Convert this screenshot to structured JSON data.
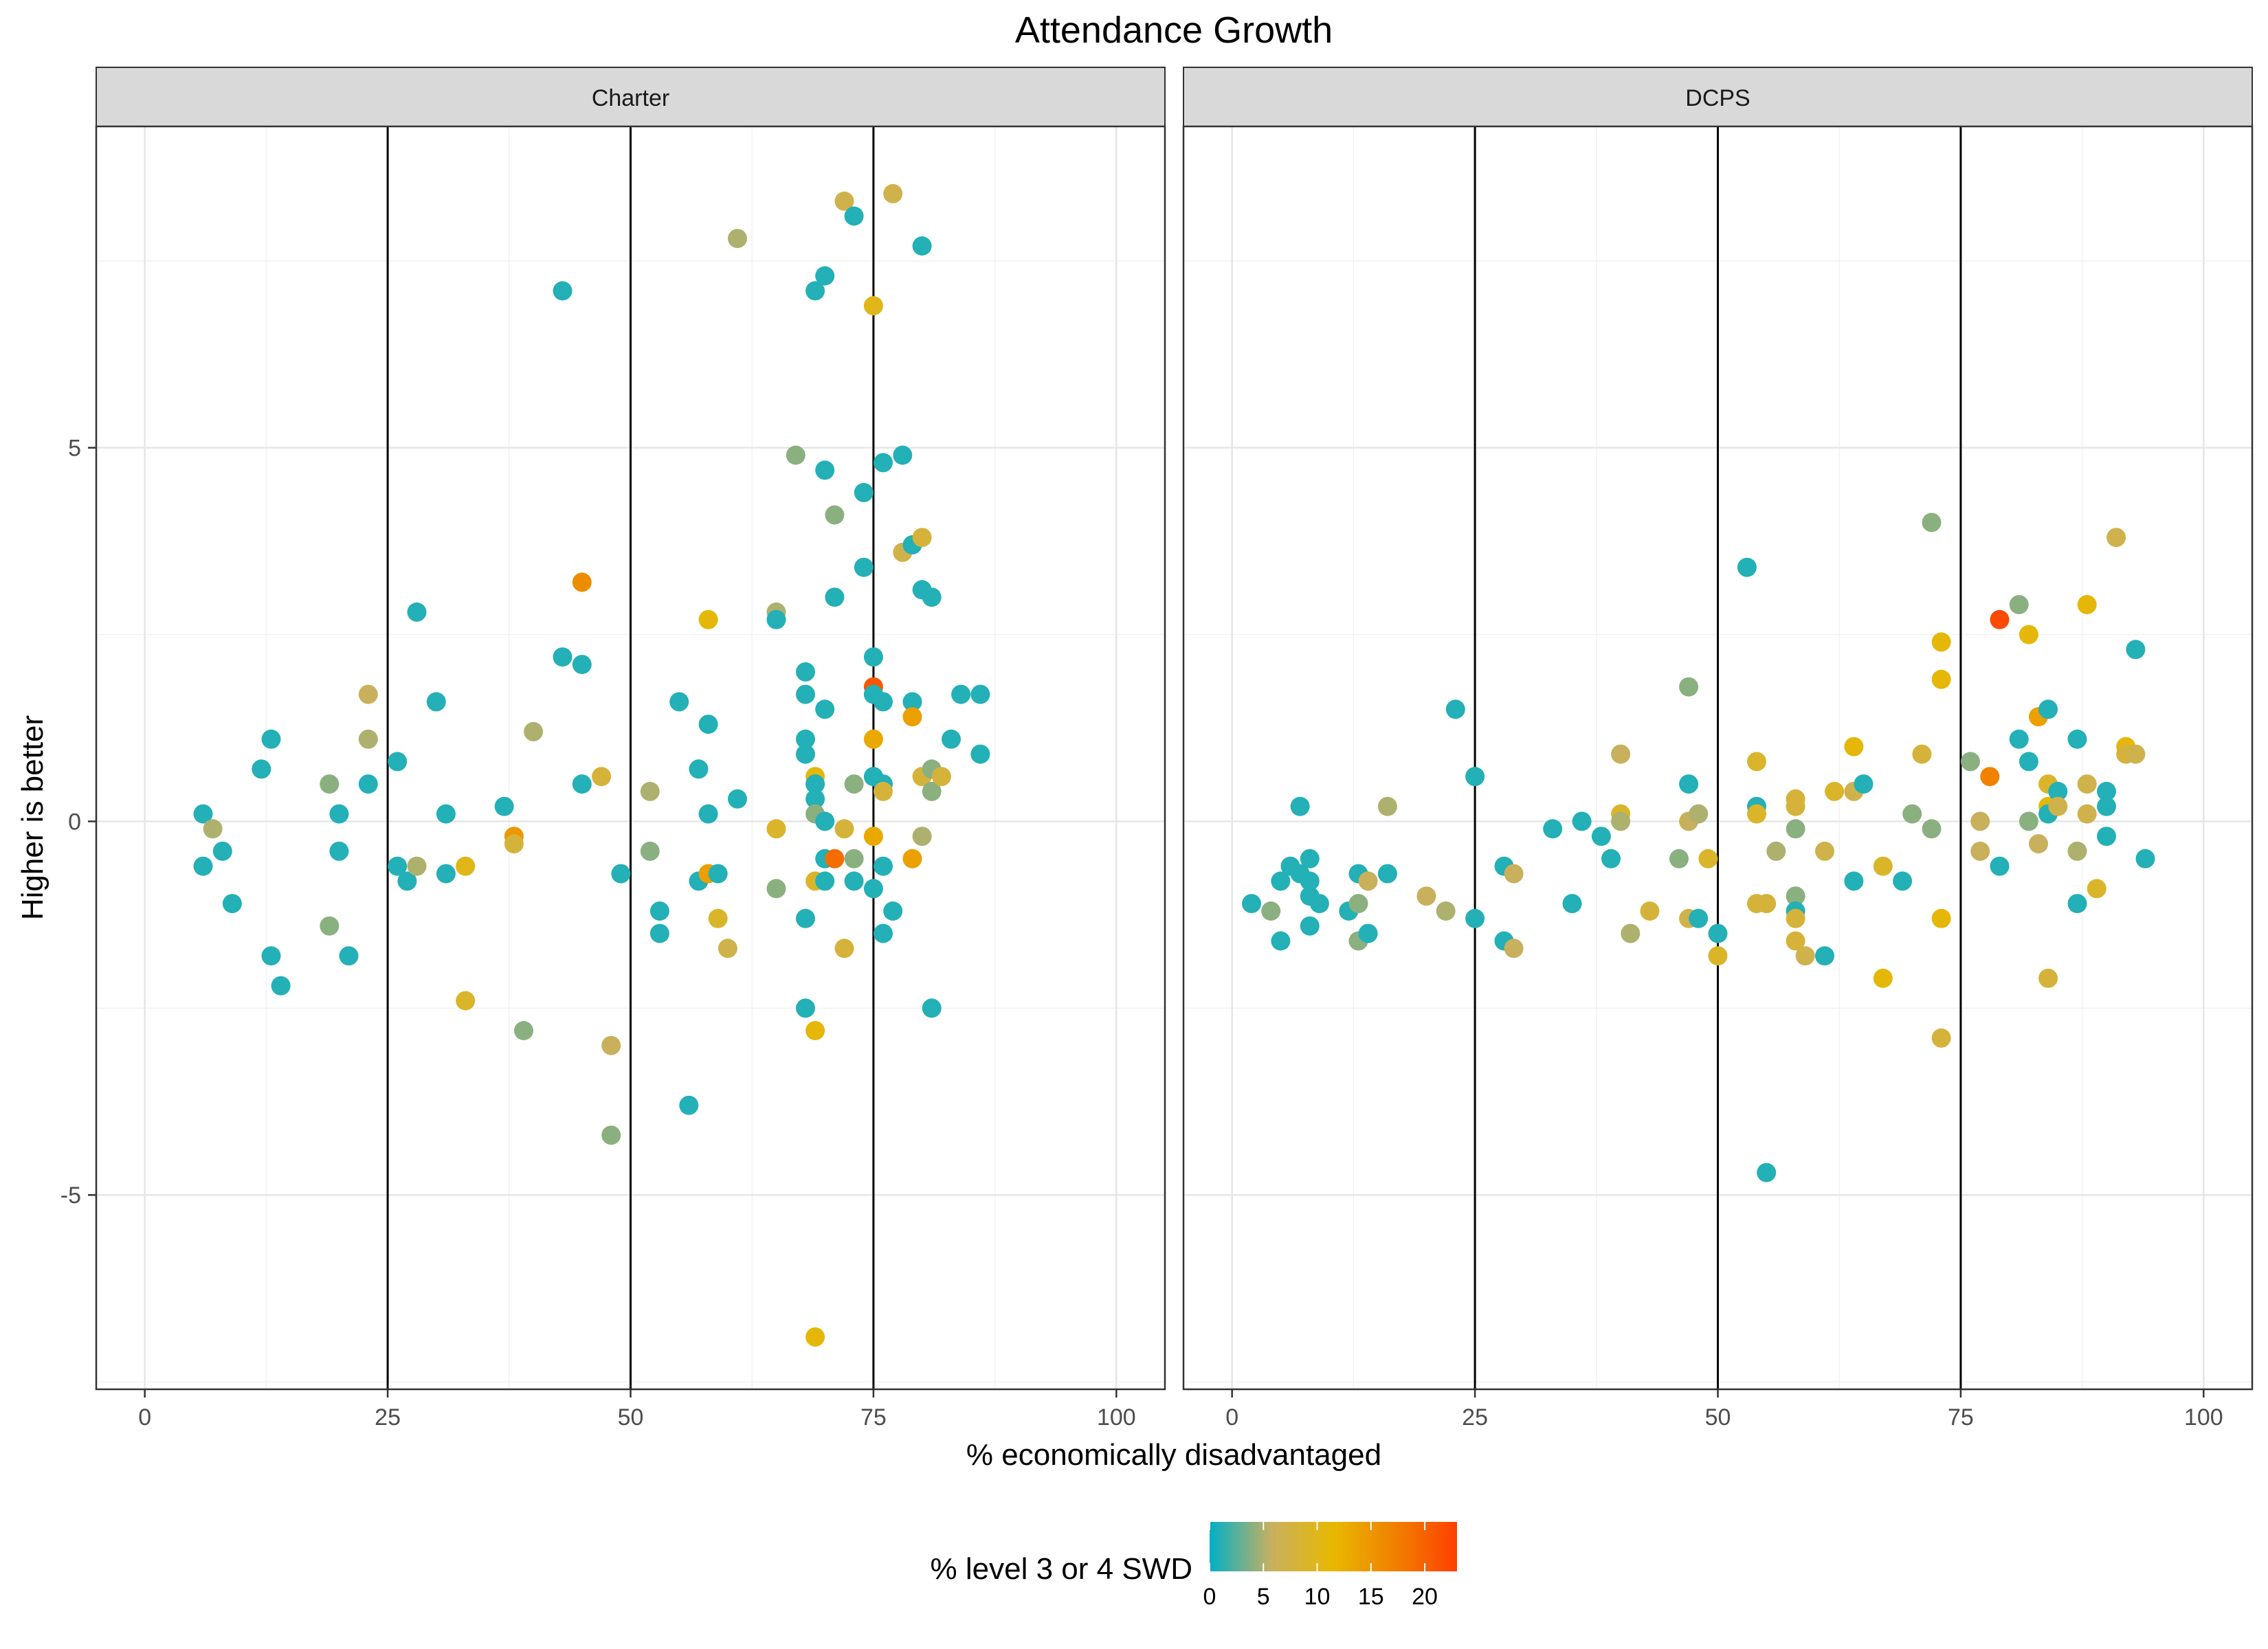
{
  "chart_data": {
    "type": "scatter",
    "title": "Attendance Growth",
    "xlabel": "% economically disadvantaged",
    "ylabel": "Higher is better",
    "xlim": [
      -5,
      105
    ],
    "ylim": [
      -7.6,
      9.3
    ],
    "x_ticks": [
      0,
      25,
      50,
      75,
      100
    ],
    "x_tick_labels": [
      "0",
      "25",
      "50",
      "75",
      "100"
    ],
    "y_ticks": [
      -5,
      0,
      5
    ],
    "y_tick_labels": [
      "-5",
      "0",
      "5"
    ],
    "reference_lines_x": [
      25,
      50,
      75
    ],
    "grid": true,
    "color_scale": {
      "title": "% level 3 or 4 SWD",
      "min": 0,
      "max": 23,
      "ticks": [
        0,
        5,
        10,
        15,
        20
      ],
      "tick_labels": [
        "0",
        "5",
        "10",
        "15",
        "20"
      ],
      "stops": [
        "#00b0c8",
        "#c8b060",
        "#e8b800",
        "#f08000",
        "#ff4000"
      ]
    },
    "panels": [
      {
        "name": "Charter",
        "points": [
          [
            6,
            0.1,
            1
          ],
          [
            7,
            -0.1,
            5
          ],
          [
            6,
            -0.6,
            1
          ],
          [
            8,
            -0.4,
            1
          ],
          [
            9,
            -1.1,
            1
          ],
          [
            12,
            0.7,
            1
          ],
          [
            13,
            1.1,
            1
          ],
          [
            13,
            -1.8,
            1
          ],
          [
            14,
            -2.2,
            1
          ],
          [
            19,
            0.5,
            4
          ],
          [
            19,
            -1.4,
            4
          ],
          [
            20,
            0.1,
            1
          ],
          [
            20,
            -0.4,
            1
          ],
          [
            21,
            -1.8,
            1
          ],
          [
            23,
            1.7,
            6
          ],
          [
            23,
            1.1,
            5
          ],
          [
            23,
            0.5,
            1
          ],
          [
            26,
            0.8,
            1
          ],
          [
            26,
            -0.6,
            1
          ],
          [
            27,
            -0.8,
            1
          ],
          [
            28,
            -0.6,
            5
          ],
          [
            28,
            2.8,
            1
          ],
          [
            30,
            1.6,
            1
          ],
          [
            31,
            0.1,
            1
          ],
          [
            31,
            -0.7,
            1
          ],
          [
            33,
            -0.6,
            10
          ],
          [
            33,
            -2.4,
            9
          ],
          [
            37,
            0.2,
            1
          ],
          [
            38,
            -0.2,
            15
          ],
          [
            38,
            -0.3,
            8
          ],
          [
            39,
            -2.8,
            4
          ],
          [
            40,
            1.2,
            5
          ],
          [
            43,
            7.1,
            1
          ],
          [
            43,
            2.2,
            1
          ],
          [
            45,
            2.1,
            1
          ],
          [
            45,
            0.5,
            1
          ],
          [
            45,
            3.2,
            16
          ],
          [
            47,
            0.6,
            8
          ],
          [
            48,
            -3,
            6
          ],
          [
            48,
            -4.2,
            4
          ],
          [
            49,
            -0.7,
            1
          ],
          [
            52,
            0.4,
            5
          ],
          [
            52,
            -0.4,
            4
          ],
          [
            53,
            -1.2,
            1
          ],
          [
            53,
            -1.5,
            1
          ],
          [
            55,
            1.6,
            1
          ],
          [
            56,
            -3.8,
            1
          ],
          [
            57,
            0.7,
            1
          ],
          [
            57,
            -0.8,
            1
          ],
          [
            58,
            1.3,
            1
          ],
          [
            58,
            0.1,
            1
          ],
          [
            58,
            2.7,
            11
          ],
          [
            58,
            -0.7,
            14
          ],
          [
            59,
            -0.7,
            1
          ],
          [
            59,
            -1.3,
            9
          ],
          [
            60,
            -1.7,
            7
          ],
          [
            61,
            7.8,
            5
          ],
          [
            61,
            0.3,
            1
          ],
          [
            65,
            2.8,
            5
          ],
          [
            65,
            2.7,
            1
          ],
          [
            65,
            -0.1,
            9
          ],
          [
            65,
            -0.9,
            4
          ],
          [
            67,
            4.9,
            4
          ],
          [
            68,
            2,
            1
          ],
          [
            68,
            1.7,
            1
          ],
          [
            68,
            1.1,
            1
          ],
          [
            68,
            0.9,
            1
          ],
          [
            68,
            -1.3,
            1
          ],
          [
            68,
            -2.5,
            1
          ],
          [
            69,
            7.1,
            1
          ],
          [
            69,
            0.6,
            11
          ],
          [
            69,
            0.5,
            1
          ],
          [
            69,
            0.3,
            1
          ],
          [
            69,
            0.1,
            4
          ],
          [
            69,
            -0.8,
            9
          ],
          [
            69,
            -2.8,
            11
          ],
          [
            69,
            -6.9,
            11
          ],
          [
            70,
            7.3,
            1
          ],
          [
            70,
            4.7,
            1
          ],
          [
            70,
            1.5,
            1
          ],
          [
            70,
            0,
            1
          ],
          [
            70,
            -0.5,
            1
          ],
          [
            70,
            -0.8,
            1
          ],
          [
            71,
            4.1,
            4
          ],
          [
            71,
            3,
            1
          ],
          [
            71,
            -0.5,
            19
          ],
          [
            72,
            8.3,
            7
          ],
          [
            72,
            -0.1,
            8
          ],
          [
            72,
            -1.7,
            8
          ],
          [
            73,
            8.1,
            1
          ],
          [
            73,
            0.5,
            4
          ],
          [
            73,
            -0.5,
            4
          ],
          [
            73,
            -0.8,
            1
          ],
          [
            74,
            4.4,
            1
          ],
          [
            74,
            3.4,
            1
          ],
          [
            75,
            6.9,
            10
          ],
          [
            75,
            2.2,
            1
          ],
          [
            75,
            1.8,
            21
          ],
          [
            75,
            1.7,
            1
          ],
          [
            75,
            1.1,
            13
          ],
          [
            75,
            0.6,
            1
          ],
          [
            75,
            -0.2,
            13
          ],
          [
            75,
            -0.9,
            1
          ],
          [
            76,
            4.8,
            1
          ],
          [
            76,
            1.6,
            1
          ],
          [
            76,
            0.5,
            1
          ],
          [
            76,
            0.4,
            8
          ],
          [
            76,
            -0.6,
            1
          ],
          [
            76,
            -1.5,
            1
          ],
          [
            77,
            8.4,
            7
          ],
          [
            77,
            -1.2,
            1
          ],
          [
            78,
            4.9,
            1
          ],
          [
            78,
            3.6,
            7
          ],
          [
            79,
            3.7,
            1
          ],
          [
            79,
            1.6,
            1
          ],
          [
            79,
            1.4,
            14
          ],
          [
            79,
            -0.5,
            14
          ],
          [
            80,
            7.7,
            1
          ],
          [
            80,
            3.8,
            8
          ],
          [
            80,
            3.1,
            1
          ],
          [
            80,
            0.6,
            8
          ],
          [
            80,
            -0.2,
            5
          ],
          [
            81,
            3,
            1
          ],
          [
            81,
            0.7,
            4
          ],
          [
            81,
            0.4,
            4
          ],
          [
            81,
            -2.5,
            1
          ],
          [
            82,
            0.6,
            8
          ],
          [
            83,
            1.1,
            1
          ],
          [
            84,
            1.7,
            1
          ],
          [
            86,
            1.7,
            1
          ],
          [
            86,
            0.9,
            1
          ]
        ]
      },
      {
        "name": "DCPS",
        "points": [
          [
            2,
            -1.1,
            1
          ],
          [
            4,
            -1.2,
            4
          ],
          [
            5,
            -0.8,
            1
          ],
          [
            5,
            -1.6,
            1
          ],
          [
            6,
            -0.6,
            1
          ],
          [
            7,
            0.2,
            1
          ],
          [
            7,
            -0.7,
            1
          ],
          [
            8,
            -0.5,
            1
          ],
          [
            8,
            -0.8,
            1
          ],
          [
            8,
            -1,
            1
          ],
          [
            8,
            -1.4,
            1
          ],
          [
            9,
            -1.1,
            1
          ],
          [
            12,
            -1.2,
            1
          ],
          [
            13,
            -0.7,
            1
          ],
          [
            13,
            -1.1,
            4
          ],
          [
            13,
            -1.6,
            4
          ],
          [
            14,
            -0.8,
            6
          ],
          [
            14,
            -1.5,
            1
          ],
          [
            16,
            0.2,
            5
          ],
          [
            16,
            -0.7,
            1
          ],
          [
            20,
            -1,
            6
          ],
          [
            22,
            -1.2,
            5
          ],
          [
            23,
            1.5,
            1
          ],
          [
            25,
            0.6,
            1
          ],
          [
            25,
            -1.3,
            1
          ],
          [
            28,
            -0.6,
            1
          ],
          [
            28,
            -1.6,
            1
          ],
          [
            29,
            -0.7,
            6
          ],
          [
            29,
            -1.7,
            6
          ],
          [
            33,
            -0.1,
            1
          ],
          [
            35,
            -1.1,
            1
          ],
          [
            36,
            0,
            1
          ],
          [
            38,
            -0.2,
            1
          ],
          [
            39,
            -0.5,
            1
          ],
          [
            40,
            0.9,
            6
          ],
          [
            40,
            0.1,
            9
          ],
          [
            40,
            0,
            5
          ],
          [
            41,
            -1.5,
            5
          ],
          [
            43,
            -1.2,
            8
          ],
          [
            46,
            -0.5,
            4
          ],
          [
            47,
            1.8,
            4
          ],
          [
            47,
            0.5,
            1
          ],
          [
            47,
            0,
            6
          ],
          [
            47,
            -1.3,
            7
          ],
          [
            48,
            0.1,
            5
          ],
          [
            48,
            -1.3,
            1
          ],
          [
            49,
            -0.5,
            9
          ],
          [
            50,
            -1.5,
            1
          ],
          [
            50,
            -1.8,
            9
          ],
          [
            53,
            3.4,
            1
          ],
          [
            54,
            0.8,
            9
          ],
          [
            54,
            0.2,
            1
          ],
          [
            54,
            0.1,
            9
          ],
          [
            54,
            -1.1,
            8
          ],
          [
            55,
            -1.1,
            8
          ],
          [
            55,
            -4.7,
            1
          ],
          [
            56,
            -0.4,
            5
          ],
          [
            58,
            0.3,
            8
          ],
          [
            58,
            0.2,
            8
          ],
          [
            58,
            -0.1,
            4
          ],
          [
            58,
            -1,
            4
          ],
          [
            58,
            -1.2,
            1
          ],
          [
            58,
            -1.3,
            8
          ],
          [
            58,
            -1.6,
            8
          ],
          [
            59,
            -1.8,
            7
          ],
          [
            61,
            -0.4,
            7
          ],
          [
            61,
            -1.8,
            1
          ],
          [
            62,
            0.4,
            9
          ],
          [
            64,
            1,
            11
          ],
          [
            64,
            0.4,
            7
          ],
          [
            64,
            -0.8,
            1
          ],
          [
            65,
            0.5,
            1
          ],
          [
            67,
            -0.6,
            9
          ],
          [
            67,
            -2.1,
            11
          ],
          [
            69,
            -0.8,
            1
          ],
          [
            70,
            0.1,
            4
          ],
          [
            71,
            0.9,
            8
          ],
          [
            72,
            4,
            4
          ],
          [
            72,
            -0.1,
            4
          ],
          [
            73,
            2.4,
            11
          ],
          [
            73,
            1.9,
            11
          ],
          [
            73,
            -1.3,
            11
          ],
          [
            73,
            -2.9,
            8
          ],
          [
            76,
            0.8,
            4
          ],
          [
            77,
            0,
            6
          ],
          [
            77,
            -0.4,
            6
          ],
          [
            78,
            0.6,
            17
          ],
          [
            79,
            2.7,
            22
          ],
          [
            79,
            -0.6,
            1
          ],
          [
            81,
            2.9,
            4
          ],
          [
            81,
            1.1,
            1
          ],
          [
            82,
            2.5,
            11
          ],
          [
            82,
            0.8,
            1
          ],
          [
            82,
            0,
            4
          ],
          [
            83,
            1.4,
            14
          ],
          [
            83,
            -0.3,
            6
          ],
          [
            84,
            1.5,
            1
          ],
          [
            84,
            0.5,
            9
          ],
          [
            84,
            0.2,
            11
          ],
          [
            84,
            0.1,
            1
          ],
          [
            84,
            -2.1,
            8
          ],
          [
            85,
            0.4,
            1
          ],
          [
            85,
            0.2,
            7
          ],
          [
            87,
            1.1,
            1
          ],
          [
            87,
            -0.4,
            5
          ],
          [
            87,
            -1.1,
            1
          ],
          [
            88,
            2.9,
            11
          ],
          [
            88,
            0.5,
            7
          ],
          [
            88,
            0.1,
            7
          ],
          [
            89,
            -0.9,
            9
          ],
          [
            90,
            0.4,
            1
          ],
          [
            90,
            0.2,
            1
          ],
          [
            90,
            -0.2,
            1
          ],
          [
            91,
            3.8,
            7
          ],
          [
            92,
            1,
            11
          ],
          [
            92,
            0.9,
            8
          ],
          [
            93,
            2.3,
            1
          ],
          [
            93,
            0.9,
            7
          ],
          [
            94,
            -0.5,
            1
          ]
        ]
      }
    ]
  }
}
